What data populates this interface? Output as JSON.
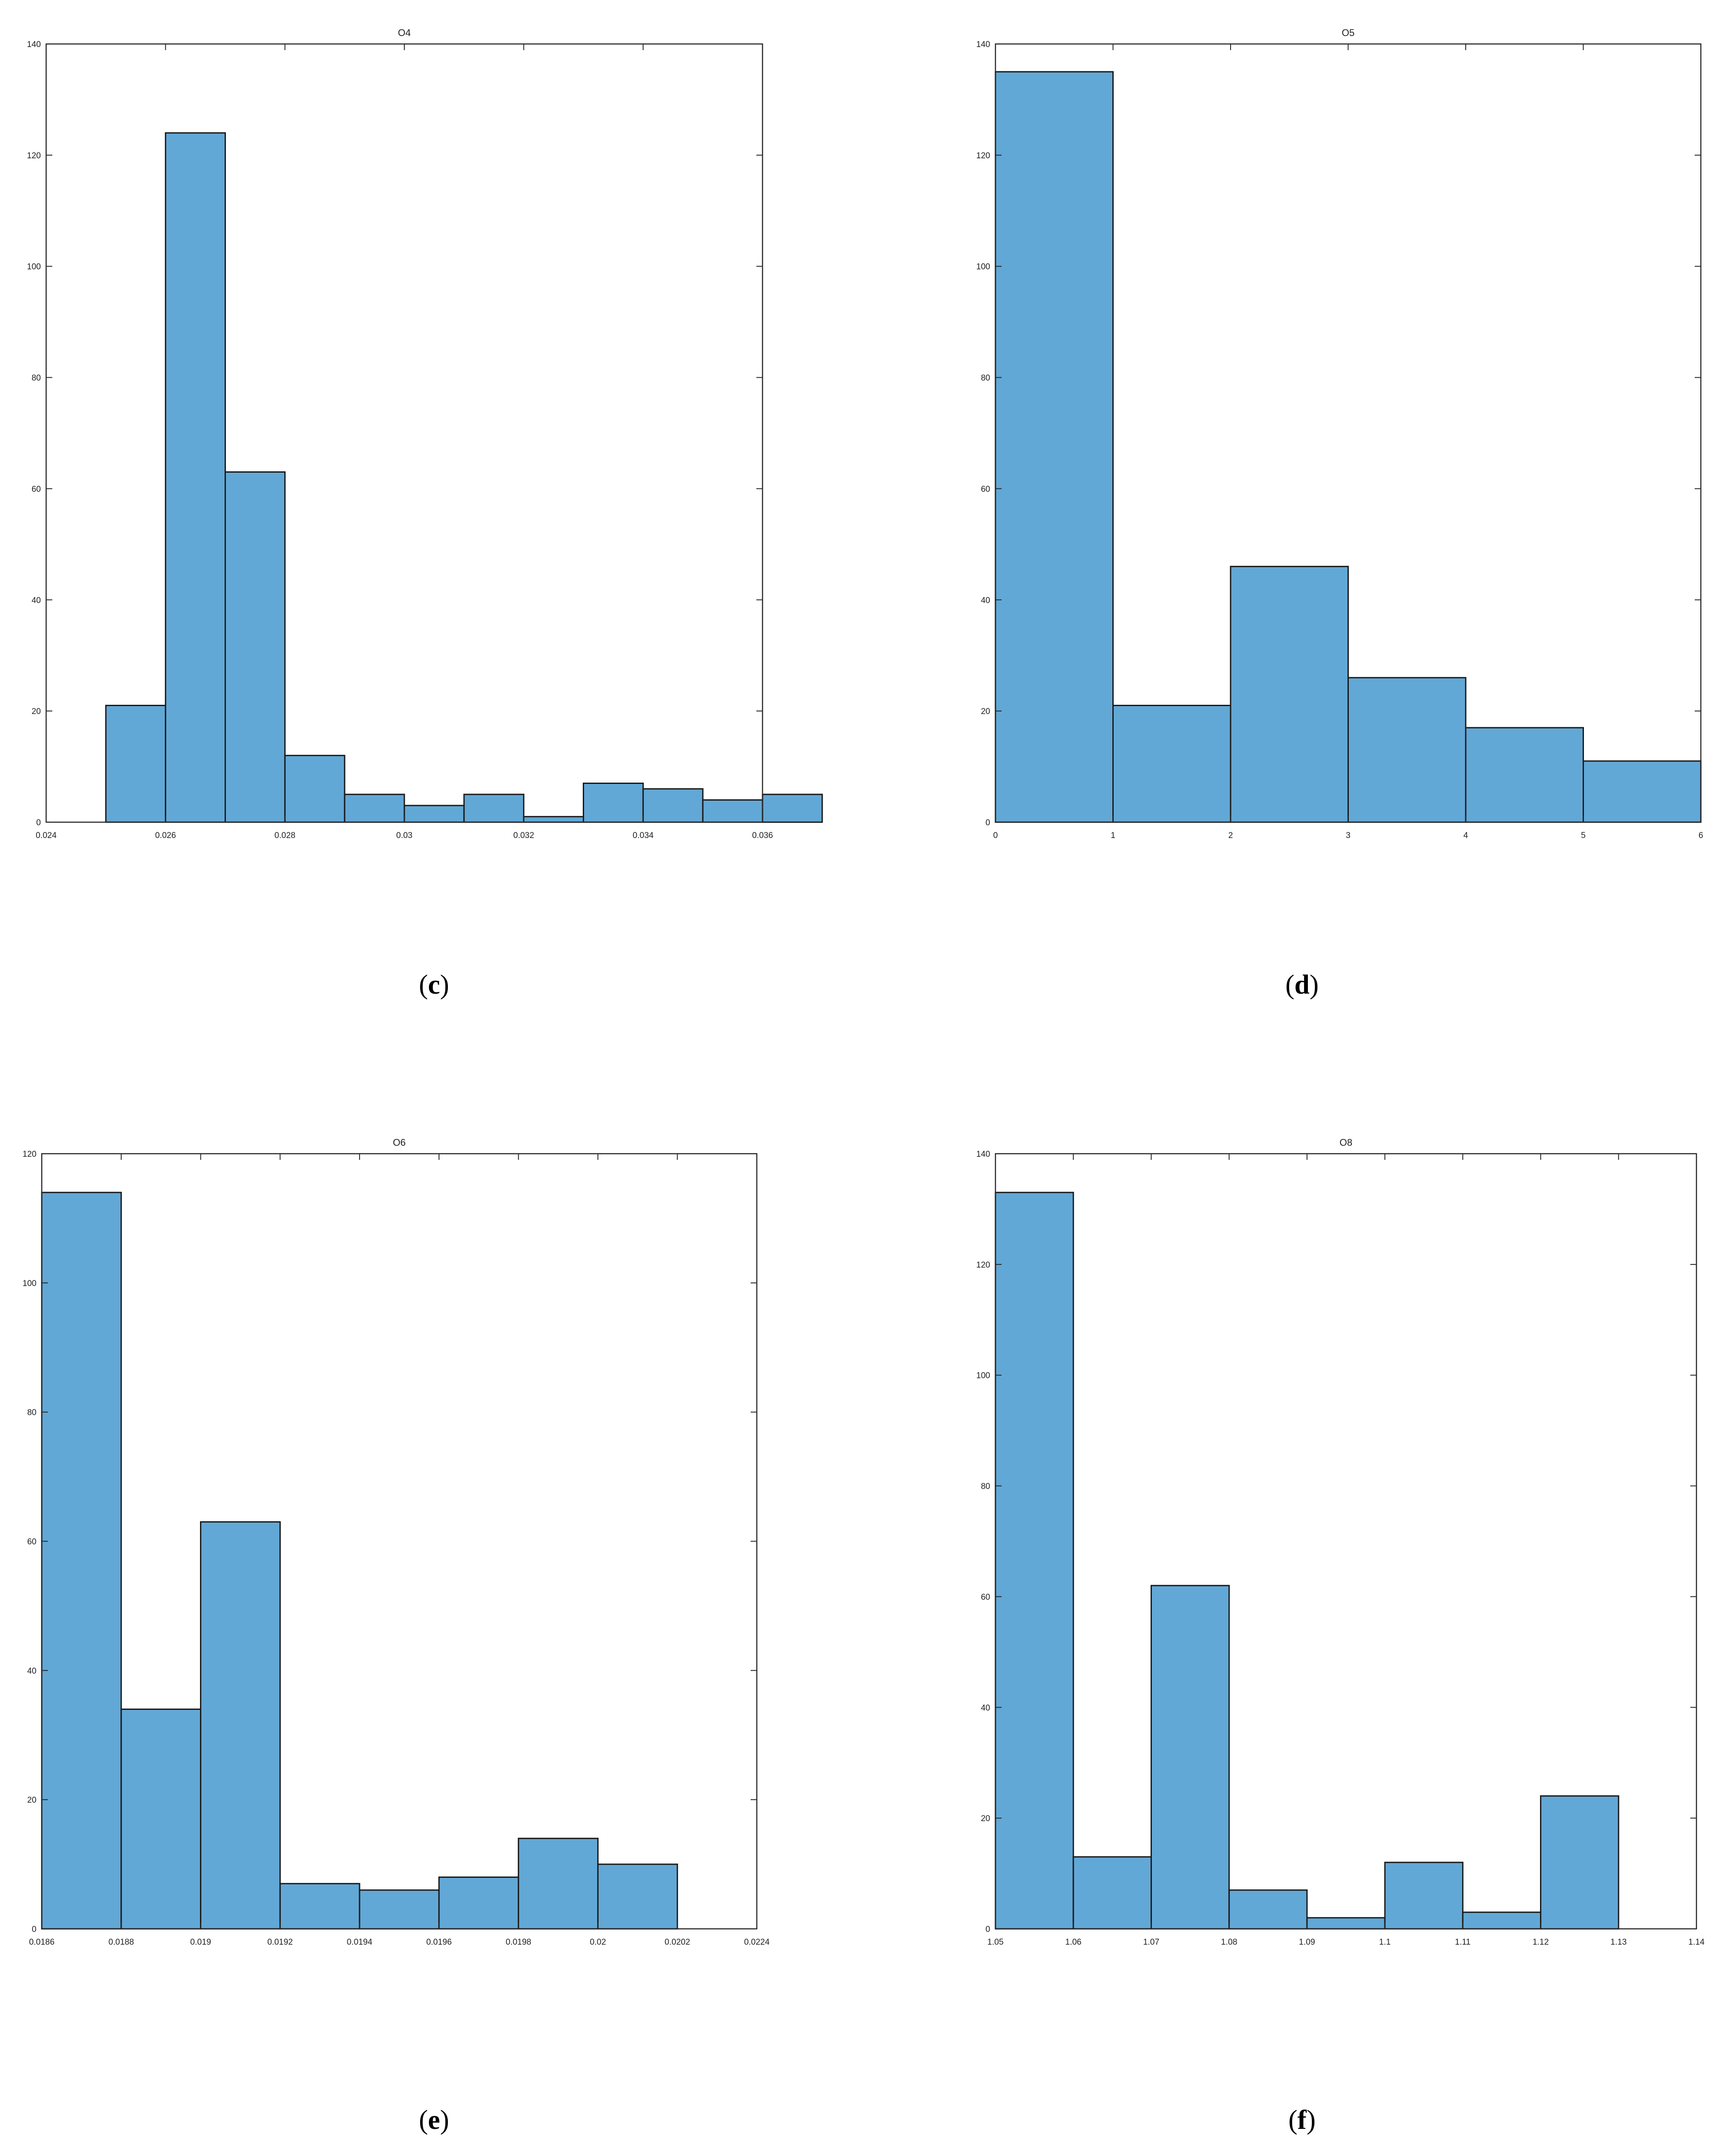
{
  "figure": {
    "captions": [
      "c",
      "d",
      "e",
      "f"
    ]
  },
  "colors": {
    "bar_fill": "#62A8D6",
    "bar_edge": "#1a1a1a",
    "axis": "#262626"
  },
  "chart_data": [
    {
      "panel": "c",
      "type": "bar",
      "title": "O4",
      "xlim": [
        0.024,
        0.036
      ],
      "ylim": [
        0,
        140
      ],
      "xticks": [
        0.024,
        0.026,
        0.028,
        0.03,
        0.032,
        0.034,
        0.036
      ],
      "xticklabels": [
        "0.024",
        "0.026",
        "0.028",
        "0.03",
        "0.032",
        "0.034",
        "0.036"
      ],
      "yticks": [
        0,
        20,
        40,
        60,
        80,
        100,
        120,
        140
      ],
      "yticklabels": [
        "0",
        "20",
        "40",
        "60",
        "80",
        "100",
        "120",
        "140"
      ],
      "bin_edges": [
        0.025,
        0.026,
        0.027,
        0.028,
        0.029,
        0.03,
        0.031,
        0.032,
        0.033,
        0.034,
        0.035,
        0.036
      ],
      "values": [
        21,
        124,
        63,
        12,
        5,
        3,
        5,
        1,
        7,
        6,
        4,
        5
      ],
      "bin_width": 0.001
    },
    {
      "panel": "d",
      "type": "bar",
      "title": "O5",
      "xlim": [
        0,
        6
      ],
      "ylim": [
        0,
        140
      ],
      "xticks": [
        0,
        1,
        2,
        3,
        4,
        5,
        6
      ],
      "xticklabels": [
        "0",
        "1",
        "2",
        "3",
        "4",
        "5",
        "6"
      ],
      "yticks": [
        0,
        20,
        40,
        60,
        80,
        100,
        120,
        140
      ],
      "yticklabels": [
        "0",
        "20",
        "40",
        "60",
        "80",
        "100",
        "120",
        "140"
      ],
      "bin_edges": [
        0,
        1,
        2,
        3,
        4,
        5
      ],
      "values": [
        135,
        21,
        46,
        26,
        17,
        11
      ],
      "bin_width": 1
    },
    {
      "panel": "e",
      "type": "bar",
      "title": "O6",
      "xlim": [
        0.0186,
        0.0224
      ],
      "ylim": [
        0,
        120
      ],
      "xticks": [
        0.0186,
        0.0188,
        0.019,
        0.0192,
        0.0194,
        0.0196,
        0.0198,
        0.02,
        0.0202,
        0.0224
      ],
      "xticklabels": [
        "0.0186",
        "0.0188",
        "0.019",
        "0.0192",
        "0.0194",
        "0.0196",
        "0.0198",
        "0.02",
        "0.0202",
        "0.0224"
      ],
      "yticks": [
        0,
        20,
        40,
        60,
        80,
        100,
        120
      ],
      "yticklabels": [
        "0",
        "20",
        "40",
        "60",
        "80",
        "100",
        "120"
      ],
      "bar_slots": 9,
      "values": [
        114,
        34,
        63,
        7,
        6,
        8,
        14,
        10
      ]
    },
    {
      "panel": "f",
      "type": "bar",
      "title": "O8",
      "xlim": [
        1.05,
        1.14
      ],
      "ylim": [
        0,
        140
      ],
      "xticks": [
        1.05,
        1.06,
        1.07,
        1.08,
        1.09,
        1.1,
        1.11,
        1.12,
        1.13,
        1.14
      ],
      "xticklabels": [
        "1.05",
        "1.06",
        "1.07",
        "1.08",
        "1.09",
        "1.1",
        "1.11",
        "1.12",
        "1.13",
        "1.14"
      ],
      "yticks": [
        0,
        20,
        40,
        60,
        80,
        100,
        120,
        140
      ],
      "yticklabels": [
        "0",
        "20",
        "40",
        "60",
        "80",
        "100",
        "120",
        "140"
      ],
      "bin_edges": [
        1.05,
        1.06,
        1.07,
        1.08,
        1.09,
        1.1,
        1.11,
        1.12
      ],
      "values": [
        133,
        13,
        62,
        7,
        2,
        12,
        3,
        24
      ],
      "bin_width": 0.01
    }
  ]
}
